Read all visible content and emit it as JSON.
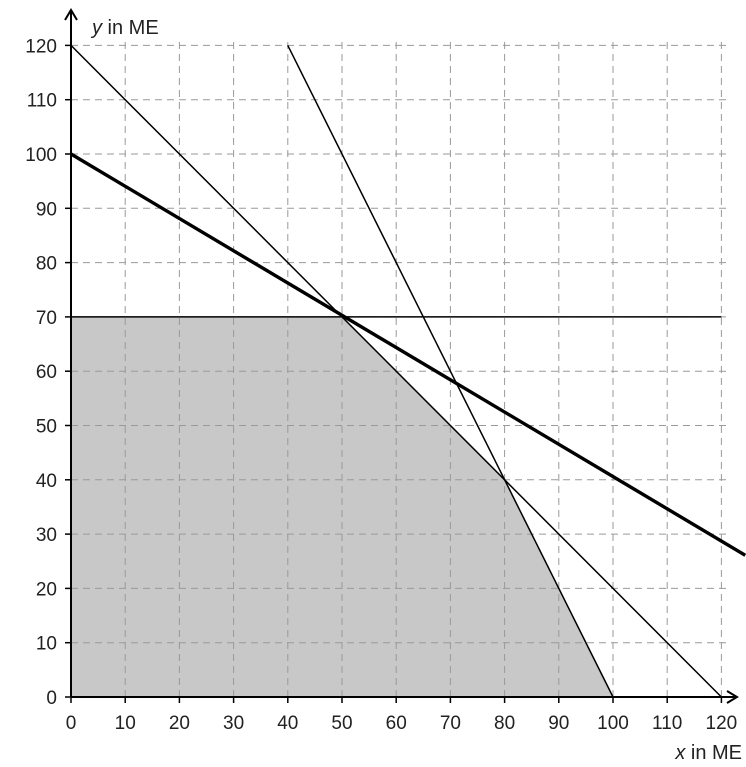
{
  "chart_data": {
    "type": "line",
    "xlabel_var": "x",
    "xlabel_unit": " in ME",
    "ylabel_var": "y",
    "ylabel_unit": " in ME",
    "xlim": [
      0,
      120
    ],
    "ylim": [
      0,
      120
    ],
    "x_ticks": [
      0,
      10,
      20,
      30,
      40,
      50,
      60,
      70,
      80,
      90,
      100,
      110,
      120
    ],
    "y_ticks": [
      0,
      10,
      20,
      30,
      40,
      50,
      60,
      70,
      80,
      90,
      100,
      110,
      120
    ],
    "grid": true,
    "grid_style": "dashed",
    "colors": {
      "lines": "#000000",
      "grid": "#9a9a9a",
      "region": "#c8c8c8"
    },
    "feasible_region": [
      [
        0,
        0
      ],
      [
        0,
        70
      ],
      [
        50,
        70
      ],
      [
        80,
        40
      ],
      [
        100,
        0
      ]
    ],
    "lines": [
      {
        "x": [
          0,
          120
        ],
        "y": [
          120,
          0
        ],
        "weight": "thin"
      },
      {
        "x": [
          40,
          100
        ],
        "y": [
          120,
          0
        ],
        "weight": "thin"
      },
      {
        "x": [
          0,
          120
        ],
        "y": [
          70,
          70
        ],
        "weight": "thin"
      },
      {
        "x": [
          0,
          124.4
        ],
        "y": [
          100,
          26.1
        ],
        "weight": "thick"
      }
    ]
  }
}
